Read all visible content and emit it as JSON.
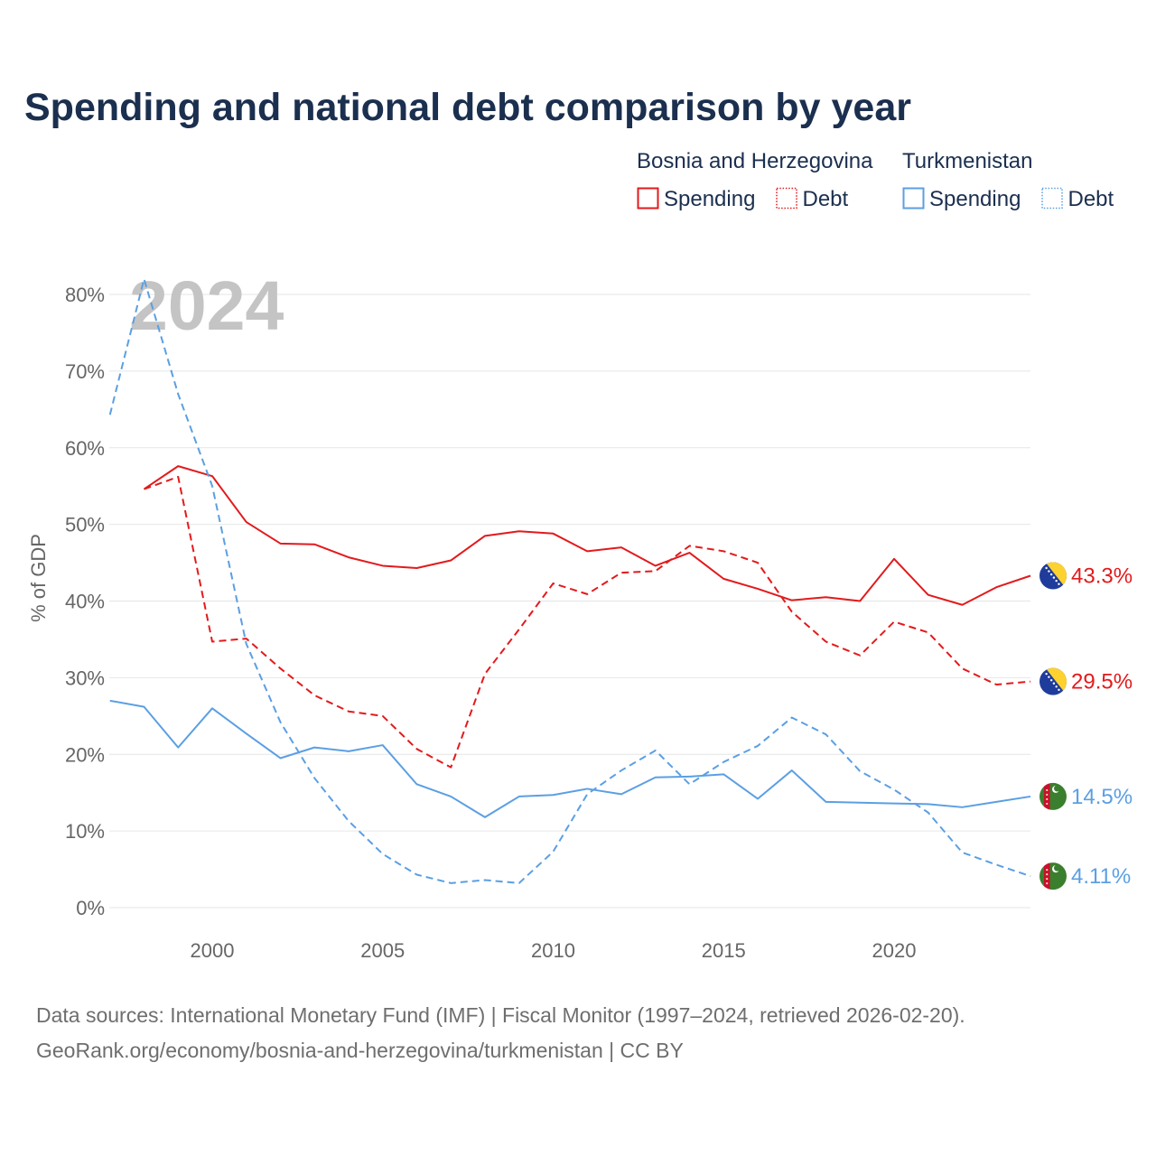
{
  "chart_data": {
    "type": "line",
    "title": "Spending and national debt comparison by year",
    "xlabel": "",
    "ylabel": "% of GDP",
    "xlim": [
      1997,
      2024
    ],
    "ylim": [
      0,
      80
    ],
    "x_ticks": [
      2000,
      2005,
      2010,
      2015,
      2020
    ],
    "y_ticks": [
      0,
      10,
      20,
      30,
      40,
      50,
      60,
      70,
      80
    ],
    "y_tick_labels": [
      "0%",
      "10%",
      "20%",
      "30%",
      "40%",
      "50%",
      "60%",
      "70%",
      "80%"
    ],
    "grid": true,
    "watermark": "2024",
    "legend": [
      {
        "country": "Bosnia and Herzegovina",
        "color": "#e31a1c",
        "flag_icon": "bosnia-and-herzegovina-flag-icon",
        "measures": [
          {
            "label": "Spending",
            "dashed": false
          },
          {
            "label": "Debt",
            "dashed": true
          }
        ]
      },
      {
        "country": "Turkmenistan",
        "color": "#5b9fe3",
        "flag_icon": "turkmenistan-flag-icon",
        "measures": [
          {
            "label": "Spending",
            "dashed": false
          },
          {
            "label": "Debt",
            "dashed": true
          }
        ]
      }
    ],
    "series": [
      {
        "legend_group": 0,
        "measure": 0,
        "x": [
          1998,
          1999,
          2000,
          2001,
          2002,
          2003,
          2004,
          2005,
          2006,
          2007,
          2008,
          2009,
          2010,
          2011,
          2012,
          2013,
          2014,
          2015,
          2016,
          2017,
          2018,
          2019,
          2020,
          2021,
          2022,
          2023,
          2024
        ],
        "values": [
          54.6,
          57.6,
          56.3,
          50.3,
          47.5,
          47.4,
          45.7,
          44.6,
          44.3,
          45.3,
          48.5,
          49.1,
          48.8,
          46.5,
          47.0,
          44.6,
          46.3,
          42.9,
          41.6,
          40.1,
          40.5,
          40.0,
          45.5,
          40.8,
          39.5,
          41.8,
          43.3
        ],
        "end_label": "43.3%"
      },
      {
        "legend_group": 0,
        "measure": 1,
        "x": [
          1998,
          1999,
          2000,
          2001,
          2002,
          2003,
          2004,
          2005,
          2006,
          2007,
          2008,
          2009,
          2010,
          2011,
          2012,
          2013,
          2014,
          2015,
          2016,
          2017,
          2018,
          2019,
          2020,
          2021,
          2022,
          2023,
          2024
        ],
        "values": [
          54.6,
          56.2,
          34.7,
          35.1,
          31.2,
          27.7,
          25.6,
          25.0,
          20.7,
          18.3,
          30.5,
          36.3,
          42.3,
          40.9,
          43.7,
          43.9,
          47.2,
          46.5,
          45.0,
          38.6,
          34.7,
          32.9,
          37.3,
          35.9,
          31.2,
          29.1,
          29.5
        ],
        "end_label": "29.5%"
      },
      {
        "legend_group": 1,
        "measure": 0,
        "x": [
          1997,
          1998,
          1999,
          2000,
          2001,
          2002,
          2003,
          2004,
          2005,
          2006,
          2007,
          2008,
          2009,
          2010,
          2011,
          2012,
          2013,
          2014,
          2015,
          2016,
          2017,
          2018,
          2019,
          2020,
          2021,
          2022,
          2023,
          2024
        ],
        "values": [
          27.0,
          26.2,
          20.9,
          26.0,
          22.7,
          19.5,
          20.9,
          20.4,
          21.2,
          16.1,
          14.5,
          11.8,
          14.5,
          14.7,
          15.5,
          14.8,
          17.0,
          17.1,
          17.4,
          14.2,
          17.9,
          13.8,
          13.7,
          13.6,
          13.5,
          13.1,
          13.8,
          14.5
        ],
        "end_label": "14.5%"
      },
      {
        "legend_group": 1,
        "measure": 1,
        "x": [
          1997,
          1998,
          1999,
          2000,
          2001,
          2002,
          2003,
          2004,
          2005,
          2006,
          2007,
          2008,
          2009,
          2010,
          2011,
          2012,
          2013,
          2014,
          2015,
          2016,
          2017,
          2018,
          2019,
          2020,
          2021,
          2022,
          2023,
          2024
        ],
        "values": [
          64.3,
          82.0,
          67.0,
          55.0,
          34.4,
          24.2,
          16.9,
          11.3,
          7.0,
          4.3,
          3.2,
          3.6,
          3.2,
          7.3,
          14.8,
          17.9,
          20.5,
          16.1,
          19.0,
          21.1,
          24.8,
          22.6,
          17.8,
          15.4,
          12.4,
          7.2,
          5.6,
          4.11
        ],
        "end_label": "4.11%"
      }
    ]
  },
  "footer": {
    "sources": "Data sources: International Monetary Fund (IMF) | Fiscal Monitor (1997–2024, retrieved 2026-02-20).",
    "attribution": "GeoRank.org/economy/bosnia-and-herzegovina/turkmenistan | CC BY"
  }
}
